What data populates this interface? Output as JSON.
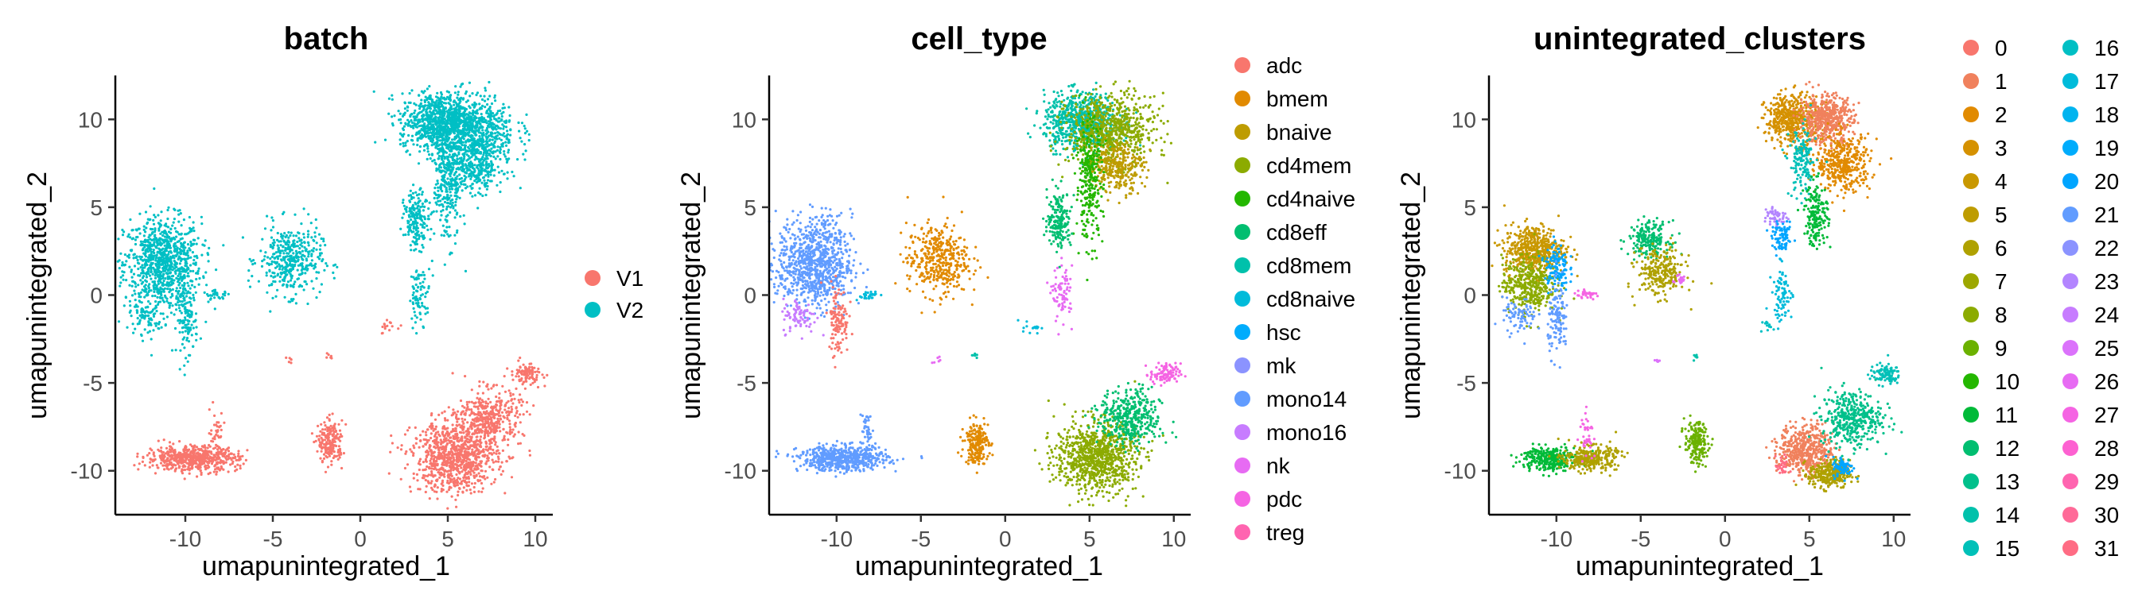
{
  "chart_data": [
    {
      "type": "scatter",
      "title": "batch",
      "xlabel": "umapunintegrated_1",
      "ylabel": "umapunintegrated_2",
      "xlim": [
        -14,
        11
      ],
      "ylim": [
        -12.5,
        12.5
      ],
      "xticks": [
        -10,
        -5,
        0,
        5,
        10
      ],
      "yticks": [
        -10,
        -5,
        0,
        5,
        10
      ],
      "xtick_labels": [
        "-10",
        "-5",
        "0",
        "5",
        "10"
      ],
      "ytick_labels": [
        "-10",
        "-5",
        "0",
        "5",
        "10"
      ],
      "legend": [
        {
          "label": "V1",
          "color": "#F8766D"
        },
        {
          "label": "V2",
          "color": "#00BFC4"
        }
      ],
      "clusters": [
        {
          "x": -11.3,
          "y": 1.8,
          "sx": 1.1,
          "sy": 1.3,
          "n": 900,
          "color": "#00BFC4"
        },
        {
          "x": -12.2,
          "y": -1.2,
          "sx": 0.5,
          "sy": 0.5,
          "n": 80,
          "color": "#00BFC4"
        },
        {
          "x": -9.9,
          "y": -1.4,
          "sx": 0.3,
          "sy": 1.0,
          "n": 120,
          "color": "#00BFC4"
        },
        {
          "x": -8.2,
          "y": 0.0,
          "sx": 0.4,
          "sy": 0.12,
          "n": 30,
          "color": "#00BFC4"
        },
        {
          "x": -4.0,
          "y": 2.0,
          "sx": 0.9,
          "sy": 1.0,
          "n": 400,
          "color": "#00BFC4"
        },
        {
          "x": 4.5,
          "y": 9.9,
          "sx": 1.1,
          "sy": 0.8,
          "n": 700,
          "color": "#00BFC4"
        },
        {
          "x": 6.3,
          "y": 9.4,
          "sx": 1.3,
          "sy": 1.0,
          "n": 700,
          "color": "#00BFC4"
        },
        {
          "x": 6.6,
          "y": 7.3,
          "sx": 0.8,
          "sy": 0.7,
          "n": 300,
          "color": "#00BFC4"
        },
        {
          "x": 5.0,
          "y": 6.5,
          "sx": 0.4,
          "sy": 1.7,
          "n": 300,
          "color": "#00BFC4"
        },
        {
          "x": 3.2,
          "y": 4.3,
          "sx": 0.35,
          "sy": 0.8,
          "n": 180,
          "color": "#00BFC4"
        },
        {
          "x": 3.4,
          "y": 0.0,
          "sx": 0.3,
          "sy": 0.8,
          "n": 80,
          "color": "#00BFC4"
        },
        {
          "x": -9.6,
          "y": -9.3,
          "sx": 1.3,
          "sy": 0.35,
          "n": 600,
          "color": "#F8766D"
        },
        {
          "x": -8.2,
          "y": -7.8,
          "sx": 0.2,
          "sy": 0.6,
          "n": 40,
          "color": "#F8766D"
        },
        {
          "x": -1.7,
          "y": -8.4,
          "sx": 0.35,
          "sy": 0.6,
          "n": 200,
          "color": "#F8766D"
        },
        {
          "x": 5.4,
          "y": -9.2,
          "sx": 1.2,
          "sy": 1.0,
          "n": 900,
          "color": "#F8766D"
        },
        {
          "x": 7.4,
          "y": -7.0,
          "sx": 0.9,
          "sy": 0.8,
          "n": 400,
          "color": "#F8766D"
        },
        {
          "x": 9.5,
          "y": -4.5,
          "sx": 0.45,
          "sy": 0.3,
          "n": 100,
          "color": "#F8766D"
        },
        {
          "x": 1.5,
          "y": -1.8,
          "sx": 0.3,
          "sy": 0.2,
          "n": 15,
          "color": "#F8766D"
        },
        {
          "x": -4.0,
          "y": -3.7,
          "sx": 0.1,
          "sy": 0.1,
          "n": 6,
          "color": "#F8766D"
        },
        {
          "x": -1.8,
          "y": -3.5,
          "sx": 0.1,
          "sy": 0.1,
          "n": 6,
          "color": "#F8766D"
        }
      ]
    },
    {
      "type": "scatter",
      "title": "cell_type",
      "xlabel": "umapunintegrated_1",
      "ylabel": "umapunintegrated_2",
      "xlim": [
        -14,
        11
      ],
      "ylim": [
        -12.5,
        12.5
      ],
      "xticks": [
        -10,
        -5,
        0,
        5,
        10
      ],
      "yticks": [
        -10,
        -5,
        0,
        5,
        10
      ],
      "xtick_labels": [
        "-10",
        "-5",
        "0",
        "5",
        "10"
      ],
      "ytick_labels": [
        "-10",
        "-5",
        "0",
        "5",
        "10"
      ],
      "legend": [
        {
          "label": "adc",
          "color": "#F8766D"
        },
        {
          "label": "bmem",
          "color": "#E18A00"
        },
        {
          "label": "bnaive",
          "color": "#BE9C00"
        },
        {
          "label": "cd4mem",
          "color": "#8CAB00"
        },
        {
          "label": "cd4naive",
          "color": "#24B700"
        },
        {
          "label": "cd8eff",
          "color": "#00BE70"
        },
        {
          "label": "cd8mem",
          "color": "#00C1AB"
        },
        {
          "label": "cd8naive",
          "color": "#00BBDA"
        },
        {
          "label": "hsc",
          "color": "#00ACFC"
        },
        {
          "label": "mk",
          "color": "#8B93FF"
        },
        {
          "label": "mono14",
          "color": "#619CFF"
        },
        {
          "label": "mono16",
          "color": "#C77CFF"
        },
        {
          "label": "nk",
          "color": "#E76BF3"
        },
        {
          "label": "pdc",
          "color": "#F564E3"
        },
        {
          "label": "treg",
          "color": "#FF64B0"
        }
      ],
      "clusters": [
        {
          "x": -11.3,
          "y": 1.8,
          "sx": 1.1,
          "sy": 1.3,
          "n": 900,
          "color": "#619CFF"
        },
        {
          "x": -12.2,
          "y": -1.2,
          "sx": 0.5,
          "sy": 0.5,
          "n": 80,
          "color": "#C77CFF"
        },
        {
          "x": -9.9,
          "y": -1.4,
          "sx": 0.3,
          "sy": 1.0,
          "n": 120,
          "color": "#F8766D"
        },
        {
          "x": -8.2,
          "y": 0.0,
          "sx": 0.4,
          "sy": 0.12,
          "n": 30,
          "color": "#00BBDA"
        },
        {
          "x": -4.0,
          "y": 2.0,
          "sx": 0.9,
          "sy": 1.0,
          "n": 400,
          "color": "#E18A00"
        },
        {
          "x": 4.5,
          "y": 9.9,
          "sx": 1.1,
          "sy": 0.8,
          "n": 700,
          "color": "#00C1AB"
        },
        {
          "x": 6.3,
          "y": 9.4,
          "sx": 1.3,
          "sy": 1.0,
          "n": 700,
          "color": "#8CAB00"
        },
        {
          "x": 6.6,
          "y": 7.3,
          "sx": 0.8,
          "sy": 0.7,
          "n": 300,
          "color": "#BE9C00"
        },
        {
          "x": 5.0,
          "y": 6.5,
          "sx": 0.4,
          "sy": 1.7,
          "n": 300,
          "color": "#24B700"
        },
        {
          "x": 3.2,
          "y": 4.3,
          "sx": 0.35,
          "sy": 0.8,
          "n": 180,
          "color": "#00BE70"
        },
        {
          "x": 3.4,
          "y": 0.0,
          "sx": 0.3,
          "sy": 0.8,
          "n": 80,
          "color": "#E76BF3"
        },
        {
          "x": -9.6,
          "y": -9.3,
          "sx": 1.3,
          "sy": 0.35,
          "n": 600,
          "color": "#619CFF"
        },
        {
          "x": -8.2,
          "y": -7.8,
          "sx": 0.2,
          "sy": 0.6,
          "n": 40,
          "color": "#619CFF"
        },
        {
          "x": -1.7,
          "y": -8.4,
          "sx": 0.35,
          "sy": 0.6,
          "n": 200,
          "color": "#E18A00"
        },
        {
          "x": 5.4,
          "y": -9.2,
          "sx": 1.2,
          "sy": 1.0,
          "n": 900,
          "color": "#8CAB00"
        },
        {
          "x": 7.4,
          "y": -7.0,
          "sx": 0.9,
          "sy": 0.8,
          "n": 400,
          "color": "#00BE70"
        },
        {
          "x": 9.5,
          "y": -4.5,
          "sx": 0.45,
          "sy": 0.3,
          "n": 100,
          "color": "#F564E3"
        },
        {
          "x": 1.5,
          "y": -1.8,
          "sx": 0.3,
          "sy": 0.2,
          "n": 15,
          "color": "#00BBDA"
        },
        {
          "x": -4.0,
          "y": -3.7,
          "sx": 0.1,
          "sy": 0.1,
          "n": 6,
          "color": "#E76BF3"
        },
        {
          "x": -1.8,
          "y": -3.5,
          "sx": 0.1,
          "sy": 0.1,
          "n": 6,
          "color": "#00C1AB"
        }
      ]
    },
    {
      "type": "scatter",
      "title": "unintegrated_clusters",
      "xlabel": "umapunintegrated_1",
      "ylabel": "umapunintegrated_2",
      "xlim": [
        -14,
        11
      ],
      "ylim": [
        -12.5,
        12.5
      ],
      "xticks": [
        -10,
        -5,
        0,
        5,
        10
      ],
      "yticks": [
        -10,
        -5,
        0,
        5,
        10
      ],
      "xtick_labels": [
        "-10",
        "-5",
        "0",
        "5",
        "10"
      ],
      "ytick_labels": [
        "-10",
        "-5",
        "0",
        "5",
        "10"
      ],
      "legend": [
        {
          "label": "0",
          "color": "#F8766D"
        },
        {
          "label": "1",
          "color": "#F0815D"
        },
        {
          "label": "2",
          "color": "#E18A00"
        },
        {
          "label": "3",
          "color": "#D59100"
        },
        {
          "label": "4",
          "color": "#C99800"
        },
        {
          "label": "5",
          "color": "#BE9C00"
        },
        {
          "label": "6",
          "color": "#AFA100"
        },
        {
          "label": "7",
          "color": "#9DA700"
        },
        {
          "label": "8",
          "color": "#8CAB00"
        },
        {
          "label": "9",
          "color": "#6BB100"
        },
        {
          "label": "10",
          "color": "#24B700"
        },
        {
          "label": "11",
          "color": "#00BA38"
        },
        {
          "label": "12",
          "color": "#00BE70"
        },
        {
          "label": "13",
          "color": "#00C08B"
        },
        {
          "label": "14",
          "color": "#00C1AB"
        },
        {
          "label": "15",
          "color": "#00C0B8"
        },
        {
          "label": "16",
          "color": "#00BFC4"
        },
        {
          "label": "17",
          "color": "#00BBDA"
        },
        {
          "label": "18",
          "color": "#00B4EF"
        },
        {
          "label": "19",
          "color": "#00ACFC"
        },
        {
          "label": "20",
          "color": "#00A5FF"
        },
        {
          "label": "21",
          "color": "#619CFF"
        },
        {
          "label": "22",
          "color": "#8B93FF"
        },
        {
          "label": "23",
          "color": "#B385FF"
        },
        {
          "label": "24",
          "color": "#C77CFF"
        },
        {
          "label": "25",
          "color": "#DB72FB"
        },
        {
          "label": "26",
          "color": "#E76BF3"
        },
        {
          "label": "27",
          "color": "#F564E3"
        },
        {
          "label": "28",
          "color": "#FD61D1"
        },
        {
          "label": "29",
          "color": "#FF64B0"
        },
        {
          "label": "30",
          "color": "#FF6A98"
        },
        {
          "label": "31",
          "color": "#FF6C84"
        }
      ],
      "clusters": [
        {
          "x": -11.3,
          "y": 2.6,
          "sx": 0.9,
          "sy": 0.7,
          "n": 500,
          "color": "#C99800"
        },
        {
          "x": -11.6,
          "y": 0.6,
          "sx": 0.8,
          "sy": 0.8,
          "n": 400,
          "color": "#8CAB00"
        },
        {
          "x": -10.0,
          "y": 1.6,
          "sx": 0.35,
          "sy": 0.7,
          "n": 120,
          "color": "#00A5FF"
        },
        {
          "x": -12.2,
          "y": -1.2,
          "sx": 0.5,
          "sy": 0.5,
          "n": 80,
          "color": "#619CFF"
        },
        {
          "x": -9.9,
          "y": -1.4,
          "sx": 0.3,
          "sy": 1.0,
          "n": 120,
          "color": "#619CFF"
        },
        {
          "x": -8.2,
          "y": 0.0,
          "sx": 0.4,
          "sy": 0.12,
          "n": 30,
          "color": "#F564E3"
        },
        {
          "x": -4.5,
          "y": 3.2,
          "sx": 0.6,
          "sy": 0.5,
          "n": 200,
          "color": "#00BE70"
        },
        {
          "x": -3.8,
          "y": 1.3,
          "sx": 0.7,
          "sy": 0.7,
          "n": 250,
          "color": "#AFA100"
        },
        {
          "x": -2.7,
          "y": 0.9,
          "sx": 0.2,
          "sy": 0.2,
          "n": 20,
          "color": "#E76BF3"
        },
        {
          "x": 4.0,
          "y": 10.0,
          "sx": 0.8,
          "sy": 0.7,
          "n": 500,
          "color": "#D59100"
        },
        {
          "x": 6.0,
          "y": 10.0,
          "sx": 0.8,
          "sy": 0.7,
          "n": 500,
          "color": "#F0815D"
        },
        {
          "x": 7.0,
          "y": 7.5,
          "sx": 0.8,
          "sy": 0.8,
          "n": 400,
          "color": "#E18A00"
        },
        {
          "x": 4.6,
          "y": 7.5,
          "sx": 0.4,
          "sy": 1.0,
          "n": 150,
          "color": "#00C0B8"
        },
        {
          "x": 5.4,
          "y": 4.6,
          "sx": 0.35,
          "sy": 0.9,
          "n": 180,
          "color": "#00BA38"
        },
        {
          "x": 3.0,
          "y": 4.5,
          "sx": 0.35,
          "sy": 0.3,
          "n": 50,
          "color": "#B385FF"
        },
        {
          "x": 3.4,
          "y": 3.2,
          "sx": 0.3,
          "sy": 0.4,
          "n": 80,
          "color": "#00A5FF"
        },
        {
          "x": 3.4,
          "y": 0.0,
          "sx": 0.3,
          "sy": 0.8,
          "n": 80,
          "color": "#00BBDA"
        },
        {
          "x": 2.5,
          "y": -1.7,
          "sx": 0.2,
          "sy": 0.2,
          "n": 12,
          "color": "#00BFC4"
        },
        {
          "x": -10.5,
          "y": -9.3,
          "sx": 0.8,
          "sy": 0.35,
          "n": 300,
          "color": "#00BA38"
        },
        {
          "x": -8.0,
          "y": -9.3,
          "sx": 0.8,
          "sy": 0.35,
          "n": 300,
          "color": "#AFA100"
        },
        {
          "x": -8.2,
          "y": -7.8,
          "sx": 0.2,
          "sy": 0.6,
          "n": 40,
          "color": "#F564E3"
        },
        {
          "x": -1.7,
          "y": -8.4,
          "sx": 0.35,
          "sy": 0.6,
          "n": 200,
          "color": "#6BB100"
        },
        {
          "x": 4.8,
          "y": -8.8,
          "sx": 0.8,
          "sy": 0.7,
          "n": 500,
          "color": "#F0815D"
        },
        {
          "x": 6.2,
          "y": -10.2,
          "sx": 0.6,
          "sy": 0.4,
          "n": 300,
          "color": "#AFA100"
        },
        {
          "x": 7.0,
          "y": -9.8,
          "sx": 0.3,
          "sy": 0.3,
          "n": 80,
          "color": "#00A5FF"
        },
        {
          "x": 7.5,
          "y": -7.0,
          "sx": 0.9,
          "sy": 0.8,
          "n": 400,
          "color": "#00C08B"
        },
        {
          "x": 9.5,
          "y": -4.5,
          "sx": 0.45,
          "sy": 0.3,
          "n": 100,
          "color": "#00C0B8"
        },
        {
          "x": 3.4,
          "y": -9.8,
          "sx": 0.2,
          "sy": 0.3,
          "n": 30,
          "color": "#FF6C84"
        },
        {
          "x": -4.0,
          "y": -3.7,
          "sx": 0.1,
          "sy": 0.1,
          "n": 6,
          "color": "#DB72FB"
        },
        {
          "x": -1.8,
          "y": -3.5,
          "sx": 0.1,
          "sy": 0.1,
          "n": 6,
          "color": "#00C1AB"
        }
      ]
    }
  ]
}
